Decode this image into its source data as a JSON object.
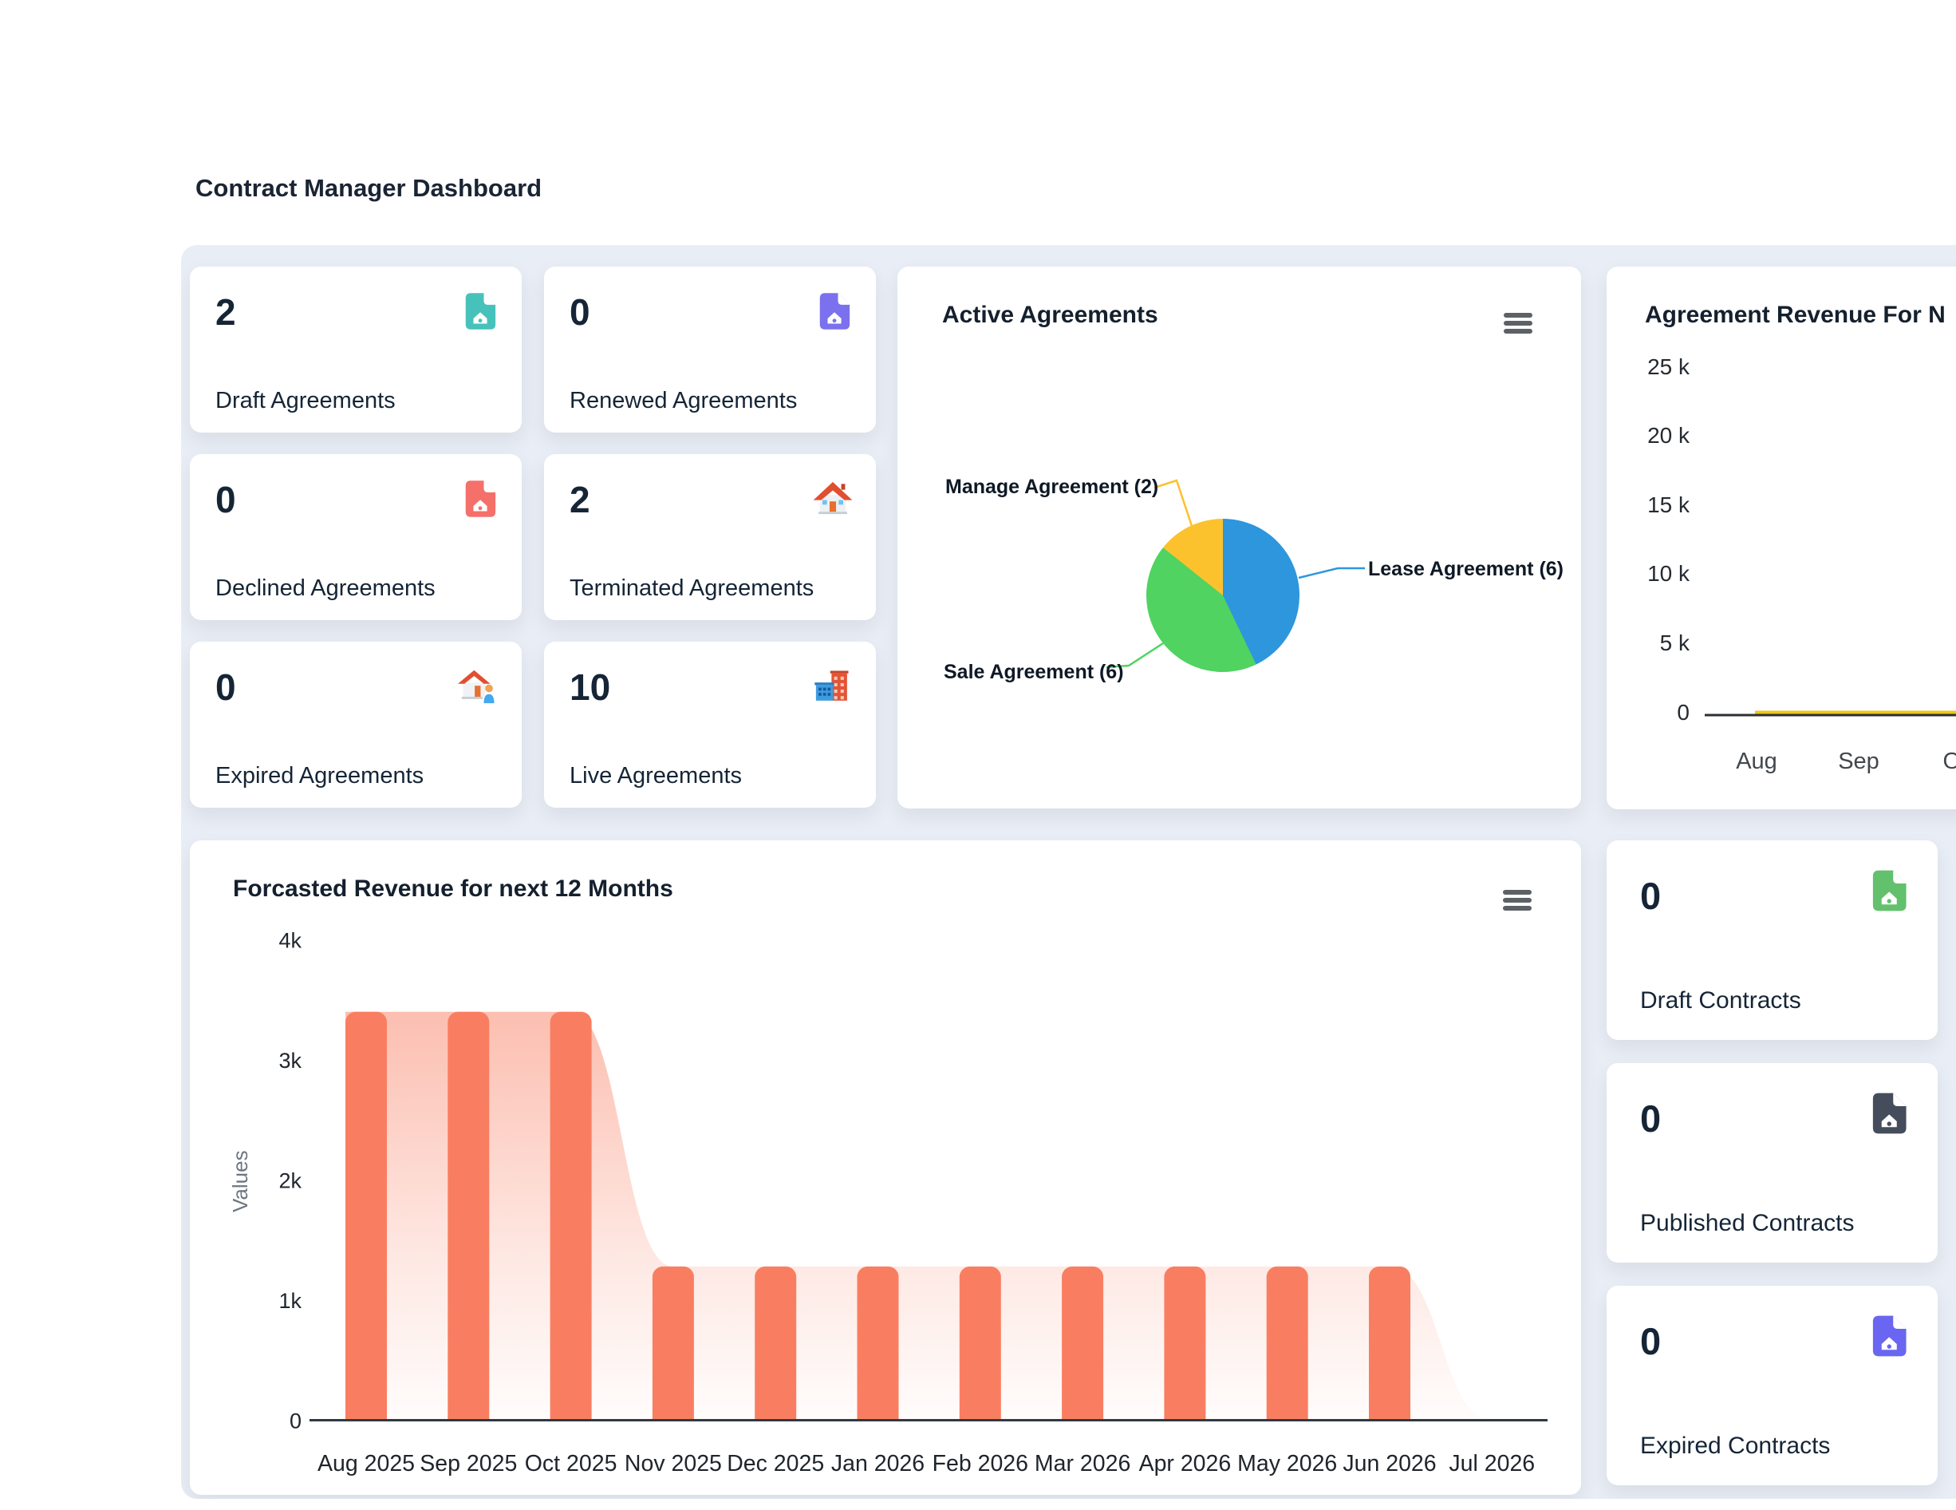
{
  "page": {
    "title": "Contract Manager Dashboard"
  },
  "stats": [
    {
      "value": "2",
      "label": "Draft Agreements",
      "icon": "doc",
      "icon_name": "document-house-icon",
      "color": "#47c2ba"
    },
    {
      "value": "0",
      "label": "Renewed Agreements",
      "icon": "doc",
      "icon_name": "document-house-icon",
      "color": "#7b70ee"
    },
    {
      "value": "0",
      "label": "Declined Agreements",
      "icon": "doc",
      "icon_name": "document-house-icon",
      "color": "#f5706a"
    },
    {
      "value": "2",
      "label": "Terminated Agreements",
      "icon": "house",
      "icon_name": "house-icon",
      "color": ""
    },
    {
      "value": "0",
      "label": "Expired Agreements",
      "icon": "house-person",
      "icon_name": "house-person-icon",
      "color": ""
    },
    {
      "value": "10",
      "label": "Live Agreements",
      "icon": "buildings",
      "icon_name": "buildings-icon",
      "color": ""
    }
  ],
  "contracts": [
    {
      "value": "0",
      "label": "Draft Contracts",
      "icon": "doc",
      "icon_name": "document-house-icon",
      "color": "#63c06d"
    },
    {
      "value": "0",
      "label": "Published Contracts",
      "icon": "doc",
      "icon_name": "document-house-icon",
      "color": "#454d5c"
    },
    {
      "value": "0",
      "label": "Expired Contracts",
      "icon": "doc",
      "icon_name": "document-house-icon",
      "color": "#6a66f2"
    }
  ],
  "chart_data": [
    {
      "id": "active_agreements",
      "type": "pie",
      "title": "Active Agreements",
      "slices": [
        {
          "label": "Lease Agreement",
          "value": 6,
          "color": "#2d96dd",
          "callout": "Lease Agreement (6)"
        },
        {
          "label": "Sale Agreement",
          "value": 6,
          "color": "#50d360",
          "callout": "Sale Agreement (6)"
        },
        {
          "label": "Manage Agreement",
          "value": 2,
          "color": "#fcc22d",
          "callout": "Manage Agreement (2)"
        }
      ],
      "start_angle_deg": 0,
      "legend_position": "callouts"
    },
    {
      "id": "agreement_revenue",
      "type": "line",
      "title": "Agreement Revenue For N",
      "x": [
        "Aug",
        "Sep",
        "Oct"
      ],
      "series": [
        {
          "name": "axis-baseline",
          "color": "#2b2f33",
          "values": [
            0,
            0,
            0
          ]
        },
        {
          "name": "revenue",
          "color": "#f0c419",
          "values": [
            0,
            0,
            0
          ]
        }
      ],
      "ylim": [
        0,
        25000
      ],
      "yticks": [
        "25 k",
        "20 k",
        "15 k",
        "10 k",
        "5 k",
        "0"
      ],
      "grid": false
    },
    {
      "id": "forecast",
      "type": "bar",
      "title": "Forcasted Revenue for next 12 Months",
      "categories": [
        "Aug 2025",
        "Sep 2025",
        "Oct 2025",
        "Nov 2025",
        "Dec 2025",
        "Jan 2026",
        "Feb 2026",
        "Mar 2026",
        "Apr 2026",
        "May 2026",
        "Jun 2026",
        "Jul 2026"
      ],
      "values": [
        3400,
        3400,
        3400,
        1280,
        1280,
        1280,
        1280,
        1280,
        1280,
        1280,
        1280,
        0
      ],
      "area_overlay": true,
      "bar_color": "#f97e61",
      "ylabel": "Values",
      "ylim": [
        0,
        4000
      ],
      "yticks": [
        {
          "label": "4k",
          "value": 4000
        },
        {
          "label": "3k",
          "value": 3000
        },
        {
          "label": "2k",
          "value": 2000
        },
        {
          "label": "1k",
          "value": 1000
        },
        {
          "label": "0",
          "value": 0
        }
      ],
      "grid": false,
      "legend_position": "none"
    }
  ]
}
